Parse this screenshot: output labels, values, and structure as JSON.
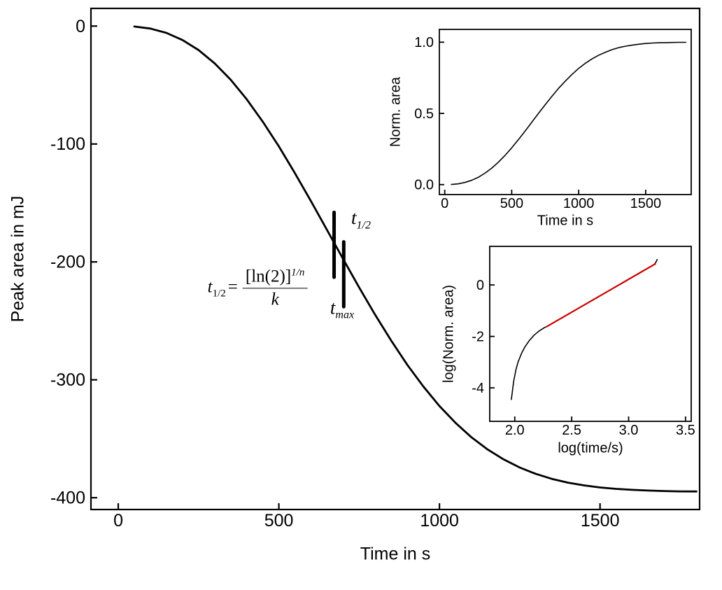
{
  "figure": {
    "background": "#ffffff",
    "line_color": "#000000",
    "fit_color": "#cc0000",
    "annotations": {
      "formula": {
        "lhs_base": "t",
        "lhs_sub": "1/2",
        "equals": "=",
        "numerator": "[ln(2)]",
        "exponent": "1/n",
        "denominator": "k"
      },
      "t_half_label": {
        "base": "t",
        "sub": "1/2"
      },
      "t_max_label": {
        "base": "t",
        "sub": "max"
      }
    }
  },
  "chart_data": [
    {
      "id": "main",
      "type": "line",
      "title": "",
      "xlabel": "Time in s",
      "ylabel": "Peak area in mJ",
      "xlim": [
        -85,
        1810
      ],
      "ylim": [
        -410,
        15
      ],
      "grid": false,
      "legend": "none",
      "xticks": [
        {
          "v": 0,
          "label": "0"
        },
        {
          "v": 500,
          "label": "500"
        },
        {
          "v": 1000,
          "label": "1000"
        },
        {
          "v": 1500,
          "label": "1500"
        }
      ],
      "yticks": [
        {
          "v": 0,
          "label": "0"
        },
        {
          "v": -100,
          "label": "-100"
        },
        {
          "v": -200,
          "label": "-200"
        },
        {
          "v": -300,
          "label": "-300"
        },
        {
          "v": -400,
          "label": "-400"
        }
      ],
      "series": [
        {
          "name": "peak-area",
          "color": "#000000",
          "points": [
            [
              50,
              -0.4
            ],
            [
              100,
              -2.1
            ],
            [
              150,
              -5.8
            ],
            [
              200,
              -11.8
            ],
            [
              250,
              -20.3
            ],
            [
              300,
              -31.6
            ],
            [
              350,
              -45.5
            ],
            [
              400,
              -62.1
            ],
            [
              450,
              -81.1
            ],
            [
              500,
              -102.0
            ],
            [
              550,
              -124.7
            ],
            [
              600,
              -148.5
            ],
            [
              650,
              -172.9
            ],
            [
              700,
              -197.5
            ],
            [
              750,
              -221.7
            ],
            [
              800,
              -244.9
            ],
            [
              850,
              -266.9
            ],
            [
              900,
              -287.3
            ],
            [
              950,
              -305.7
            ],
            [
              1000,
              -322.2
            ],
            [
              1050,
              -336.5
            ],
            [
              1100,
              -348.8
            ],
            [
              1150,
              -359.1
            ],
            [
              1200,
              -367.5
            ],
            [
              1250,
              -374.4
            ],
            [
              1300,
              -379.8
            ],
            [
              1350,
              -384.0
            ],
            [
              1400,
              -387.2
            ],
            [
              1450,
              -389.5
            ],
            [
              1500,
              -391.3
            ],
            [
              1550,
              -392.5
            ],
            [
              1600,
              -393.3
            ],
            [
              1650,
              -393.9
            ],
            [
              1700,
              -394.3
            ],
            [
              1750,
              -394.6
            ],
            [
              1800,
              -394.7
            ]
          ]
        }
      ],
      "markers": [
        {
          "name": "t-half-marker",
          "x": 672,
          "y1": -158,
          "y2": -213
        },
        {
          "name": "t-max-marker",
          "x": 702,
          "y1": -183,
          "y2": -238
        }
      ]
    },
    {
      "id": "norm-area-inset",
      "type": "line",
      "title": "",
      "xlabel": "Time in s",
      "ylabel": "Norm. area",
      "xlim": [
        -40,
        1840
      ],
      "ylim": [
        -0.07,
        1.09
      ],
      "grid": false,
      "legend": "none",
      "xticks": [
        {
          "v": 0,
          "label": "0"
        },
        {
          "v": 500,
          "label": "500"
        },
        {
          "v": 1000,
          "label": "1000"
        },
        {
          "v": 1500,
          "label": "1500"
        }
      ],
      "yticks": [
        {
          "v": 0.0,
          "label": "0.0"
        },
        {
          "v": 0.5,
          "label": "0.5"
        },
        {
          "v": 1.0,
          "label": "1.0"
        }
      ],
      "series": [
        {
          "name": "norm-area",
          "color": "#000000",
          "points": [
            [
              50,
              0.001
            ],
            [
              100,
              0.005
            ],
            [
              150,
              0.015
            ],
            [
              200,
              0.03
            ],
            [
              250,
              0.051
            ],
            [
              300,
              0.08
            ],
            [
              350,
              0.115
            ],
            [
              400,
              0.157
            ],
            [
              450,
              0.205
            ],
            [
              500,
              0.258
            ],
            [
              550,
              0.316
            ],
            [
              600,
              0.376
            ],
            [
              650,
              0.438
            ],
            [
              700,
              0.5
            ],
            [
              750,
              0.561
            ],
            [
              800,
              0.62
            ],
            [
              850,
              0.676
            ],
            [
              900,
              0.727
            ],
            [
              950,
              0.774
            ],
            [
              1000,
              0.816
            ],
            [
              1050,
              0.852
            ],
            [
              1100,
              0.883
            ],
            [
              1150,
              0.909
            ],
            [
              1200,
              0.93
            ],
            [
              1250,
              0.948
            ],
            [
              1300,
              0.962
            ],
            [
              1350,
              0.972
            ],
            [
              1400,
              0.98
            ],
            [
              1450,
              0.986
            ],
            [
              1500,
              0.991
            ],
            [
              1550,
              0.994
            ],
            [
              1600,
              0.996
            ],
            [
              1650,
              0.997
            ],
            [
              1700,
              0.998
            ],
            [
              1750,
              0.999
            ],
            [
              1800,
              0.999
            ]
          ]
        }
      ],
      "markers": []
    },
    {
      "id": "avrami-inset",
      "type": "line",
      "title": "",
      "xlabel": "log(time/s)",
      "ylabel": "log(Norm. area)",
      "xlim": [
        1.78,
        3.55
      ],
      "ylim": [
        -5.3,
        1.5
      ],
      "grid": false,
      "legend": "none",
      "xticks": [
        {
          "v": 2.0,
          "label": "2.0"
        },
        {
          "v": 2.5,
          "label": "2.5"
        },
        {
          "v": 3.0,
          "label": "3.0"
        },
        {
          "v": 3.5,
          "label": "3.5"
        }
      ],
      "yticks": [
        {
          "v": 0,
          "label": "0"
        },
        {
          "v": -2,
          "label": "-2"
        },
        {
          "v": -4,
          "label": "-4"
        }
      ],
      "series": [
        {
          "name": "data",
          "color": "#000000",
          "points": [
            [
              1.97,
              -4.45
            ],
            [
              1.99,
              -3.75
            ],
            [
              2.01,
              -3.3
            ],
            [
              2.03,
              -2.98
            ],
            [
              2.06,
              -2.65
            ],
            [
              2.09,
              -2.4
            ],
            [
              2.13,
              -2.15
            ],
            [
              2.17,
              -1.95
            ],
            [
              2.21,
              -1.8
            ],
            [
              2.26,
              -1.66
            ],
            [
              2.3,
              -1.57
            ],
            [
              2.4,
              -1.31
            ],
            [
              2.5,
              -1.06
            ],
            [
              2.6,
              -0.8
            ],
            [
              2.7,
              -0.55
            ],
            [
              2.8,
              -0.29
            ],
            [
              2.9,
              -0.04
            ],
            [
              3.0,
              0.22
            ],
            [
              3.1,
              0.47
            ],
            [
              3.15,
              0.6
            ],
            [
              3.2,
              0.73
            ],
            [
              3.22,
              0.78
            ],
            [
              3.235,
              0.85
            ],
            [
              3.245,
              0.93
            ],
            [
              3.25,
              0.99
            ]
          ]
        },
        {
          "name": "linear-fit",
          "color": "#cc0000",
          "points": [
            [
              2.28,
              -1.62
            ],
            [
              3.235,
              0.82
            ]
          ]
        }
      ],
      "markers": []
    }
  ]
}
